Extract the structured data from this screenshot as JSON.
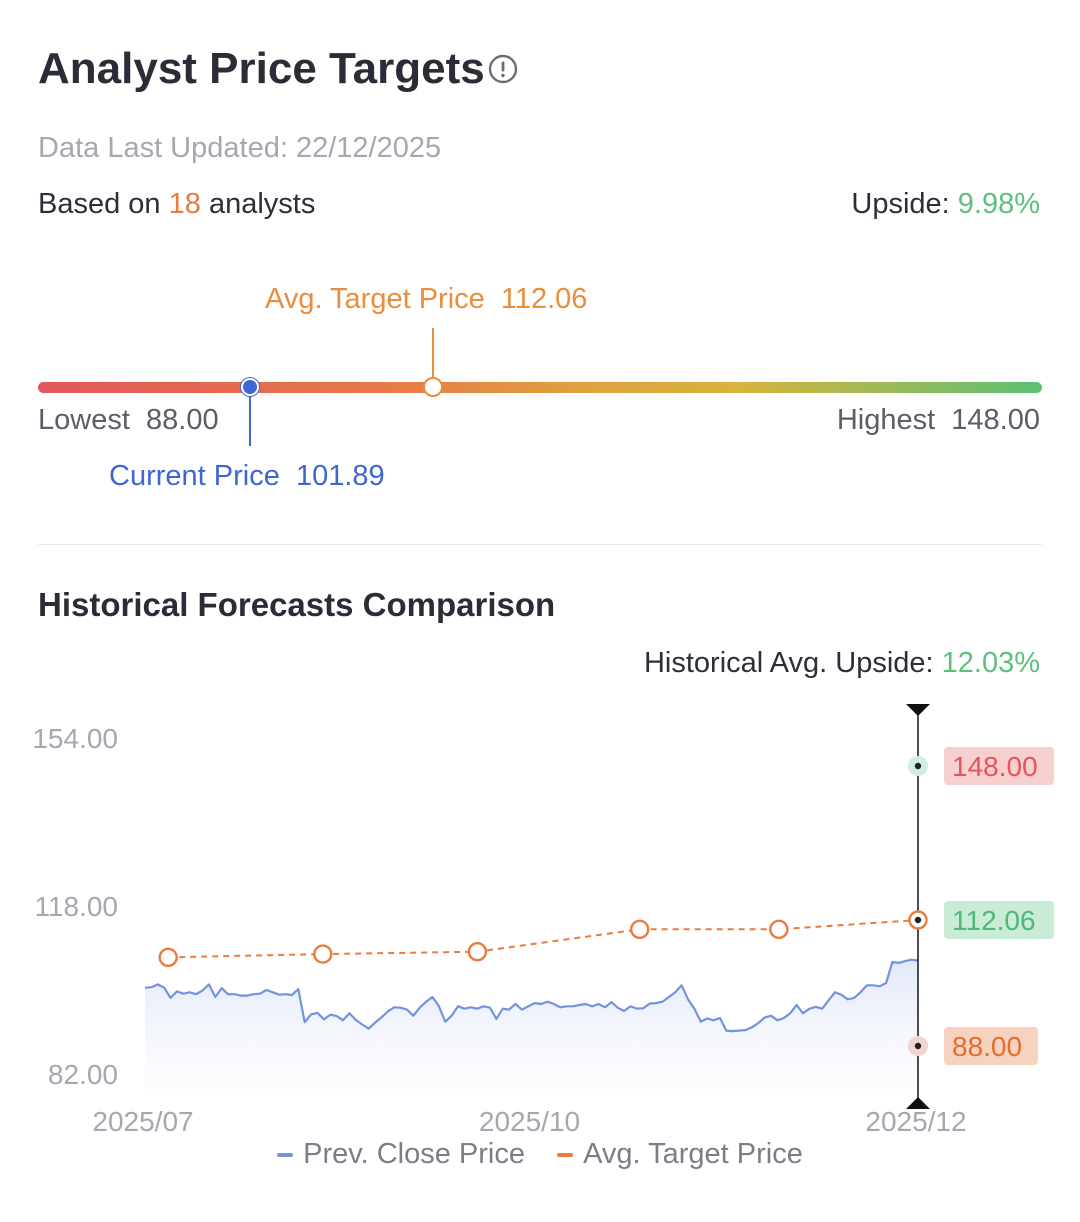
{
  "header": {
    "title": "Analyst Price Targets",
    "info_icon": "info-circle-icon",
    "updated_label": "Data Last Updated: 22/12/2025",
    "based_prefix": "Based on",
    "analyst_count": "18",
    "based_suffix": "analysts",
    "upside_label": "Upside:",
    "upside_value": "9.98%"
  },
  "range": {
    "avg_label": "Avg. Target Price",
    "avg_value": "112.06",
    "lowest_label": "Lowest",
    "lowest_value": "88.00",
    "highest_label": "Highest",
    "highest_value": "148.00",
    "current_label": "Current Price",
    "current_value": "101.89"
  },
  "history": {
    "title": "Historical Forecasts Comparison",
    "upside_label": "Historical Avg. Upside:",
    "upside_value": "12.03%"
  },
  "colors": {
    "close": "#7393dd",
    "target": "#ea7a3e",
    "green": "#5dbf7d",
    "red": "#e2575b"
  },
  "chart_data": {
    "type": "line",
    "title": "Historical Forecasts Comparison",
    "ylim": [
      82,
      154
    ],
    "y_ticks": [
      "154.00",
      "118.00",
      "82.00"
    ],
    "x_ticks": [
      "2025/07",
      "2025/10",
      "2025/12"
    ],
    "x_tick_positions": [
      0,
      0.5,
      1
    ],
    "legend": [
      "Prev. Close Price",
      "Avg. Target Price"
    ],
    "series": [
      {
        "name": "Avg. Target Price",
        "points": [
          [
            0.03,
            107.0
          ],
          [
            0.23,
            107.7
          ],
          [
            0.43,
            108.2
          ],
          [
            0.64,
            113.0
          ],
          [
            0.82,
            113.0
          ],
          [
            1.0,
            115.0
          ]
        ]
      },
      {
        "name": "Prev. Close Price",
        "values": [
          100.5,
          100.6,
          101.2,
          100.5,
          98.3,
          99.7,
          99.2,
          99.5,
          99.1,
          99.9,
          101.2,
          98.5,
          100.4,
          99.1,
          99.1,
          98.8,
          98.8,
          99.1,
          99.2,
          100.0,
          99.5,
          99.0,
          99.1,
          98.9,
          100.2,
          93.1,
          94.8,
          95.1,
          93.7,
          94.7,
          94.4,
          93.5,
          95.0,
          93.6,
          92.6,
          91.7,
          93.0,
          94.1,
          95.4,
          96.3,
          96.2,
          95.8,
          94.5,
          96.2,
          97.5,
          98.5,
          96.5,
          93.2,
          94.5,
          96.5,
          96.0,
          96.3,
          96.0,
          96.5,
          96.2,
          93.8,
          96.0,
          95.8,
          97.0,
          95.8,
          96.5,
          97.2,
          97.0,
          97.5,
          97.0,
          96.3,
          96.5,
          96.5,
          96.8,
          97.0,
          96.5,
          97.0,
          96.3,
          97.4,
          96.2,
          95.5,
          96.5,
          96.0,
          96.1,
          97.1,
          97.2,
          97.5,
          98.5,
          99.5,
          101.0,
          98.0,
          96.0,
          93.2,
          93.9,
          93.5,
          94.0,
          91.3,
          91.2,
          91.3,
          91.4,
          92.0,
          92.9,
          94.1,
          94.5,
          93.5,
          94.0,
          95.0,
          96.8,
          95.0,
          96.0,
          96.4,
          96.0,
          97.8,
          99.5,
          99.0,
          98.0,
          98.3,
          99.5,
          101.0,
          101.0,
          100.8,
          101.5,
          106.0,
          105.8,
          106.2,
          106.5,
          106.3
        ]
      }
    ],
    "markers": [
      {
        "label": "148.00",
        "value": 148.0,
        "kind": "highest"
      },
      {
        "label": "112.06",
        "value": 112.06,
        "kind": "average"
      },
      {
        "label": "88.00",
        "value": 88.0,
        "kind": "lowest"
      }
    ]
  },
  "legend": {
    "close_label": "Prev. Close Price",
    "target_label": "Avg. Target Price"
  }
}
